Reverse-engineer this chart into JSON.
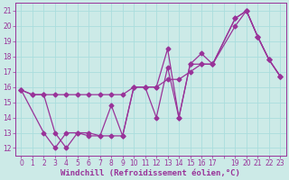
{
  "background_color": "#cceae7",
  "grid_color": "#aadddd",
  "line_color": "#993399",
  "xlabel": "Windchill (Refroidissement éolien,°C)",
  "xlim": [
    -0.5,
    23.5
  ],
  "ylim": [
    11.5,
    21.5
  ],
  "xtick_labels": [
    "0",
    "1",
    "2",
    "3",
    "4",
    "5",
    "6",
    "7",
    "8",
    "9",
    "10",
    "11",
    "12",
    "13",
    "14",
    "15",
    "16",
    "17",
    "",
    "19",
    "20",
    "21",
    "22",
    "23"
  ],
  "xtick_vals": [
    0,
    1,
    2,
    3,
    4,
    5,
    6,
    7,
    8,
    9,
    10,
    11,
    12,
    13,
    14,
    15,
    16,
    17,
    18,
    19,
    20,
    21,
    22,
    23
  ],
  "ytick_vals": [
    12,
    13,
    14,
    15,
    16,
    17,
    18,
    19,
    20,
    21
  ],
  "marker": "D",
  "markersize": 2.5,
  "linewidth": 0.9,
  "tick_fontsize": 5.5,
  "xlabel_fontsize": 6.5,
  "series1_x": [
    0,
    1,
    2,
    3,
    4,
    5,
    6,
    7,
    8,
    9,
    10,
    11,
    12,
    13,
    14,
    15,
    16,
    17,
    19,
    20,
    21,
    22,
    23
  ],
  "series1_y": [
    15.8,
    15.5,
    15.5,
    15.5,
    15.5,
    15.5,
    15.5,
    15.5,
    15.5,
    15.5,
    16.0,
    16.0,
    16.0,
    16.5,
    16.5,
    17.0,
    17.5,
    17.5,
    20.0,
    21.0,
    19.3,
    17.8,
    16.7
  ],
  "series2_x": [
    0,
    1,
    2,
    3,
    4,
    5,
    6,
    7,
    8,
    9,
    10,
    11,
    12,
    13,
    14,
    15,
    16,
    17,
    19,
    20,
    21,
    22,
    23
  ],
  "series2_y": [
    15.8,
    15.5,
    15.5,
    13.0,
    12.0,
    13.0,
    13.0,
    12.8,
    14.8,
    12.8,
    16.0,
    16.0,
    16.0,
    18.5,
    14.0,
    17.5,
    18.2,
    17.5,
    20.5,
    21.0,
    19.3,
    17.8,
    16.7
  ],
  "series3_x": [
    0,
    2,
    3,
    4,
    5,
    6,
    7,
    8,
    9,
    10,
    11,
    12,
    13,
    14,
    15,
    16,
    17,
    19,
    20,
    21,
    22,
    23
  ],
  "series3_y": [
    15.8,
    13.0,
    12.0,
    13.0,
    13.0,
    12.8,
    12.8,
    12.8,
    12.8,
    16.0,
    16.0,
    14.0,
    17.3,
    14.0,
    17.5,
    17.5,
    17.5,
    20.5,
    21.0,
    19.3,
    17.8,
    16.7
  ]
}
